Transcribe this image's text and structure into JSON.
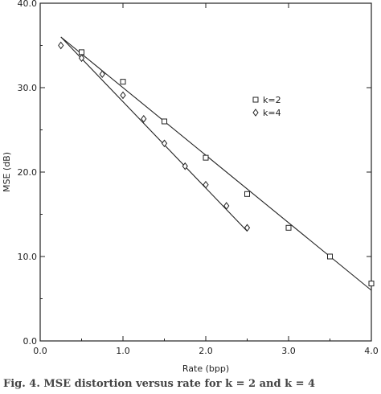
{
  "caption": "Fig. 4. MSE distortion versus rate for k = 2 and k = 4",
  "chart_data": {
    "type": "scatter",
    "xlabel": "Rate (bpp)",
    "ylabel": "MSE (dB)",
    "xlim": [
      0.0,
      4.0
    ],
    "ylim": [
      0.0,
      40.0
    ],
    "xticks": [
      "0.0",
      "1.0",
      "2.0",
      "3.0",
      "4.0"
    ],
    "yticks": [
      "0.0",
      "10.0",
      "20.0",
      "30.0",
      "40.0"
    ],
    "grid": false,
    "legend_position": "right",
    "series": [
      {
        "name": "k=2",
        "marker": "square",
        "x": [
          0.5,
          1.0,
          1.5,
          2.0,
          2.5,
          3.0,
          3.5,
          4.0
        ],
        "y": [
          34.2,
          30.7,
          26.0,
          21.7,
          17.4,
          13.4,
          10.0,
          6.8
        ],
        "fit": [
          [
            0.25,
            36.0
          ],
          [
            4.0,
            6.0
          ]
        ]
      },
      {
        "name": "k=4",
        "marker": "diamond",
        "x": [
          0.25,
          0.5,
          0.75,
          1.0,
          1.25,
          1.5,
          1.75,
          2.0,
          2.25,
          2.5
        ],
        "y": [
          35.0,
          33.5,
          31.6,
          29.1,
          26.3,
          23.4,
          20.7,
          18.5,
          16.0,
          13.4
        ],
        "fit": [
          [
            0.25,
            36.0
          ],
          [
            2.5,
            13.0
          ]
        ]
      }
    ]
  }
}
